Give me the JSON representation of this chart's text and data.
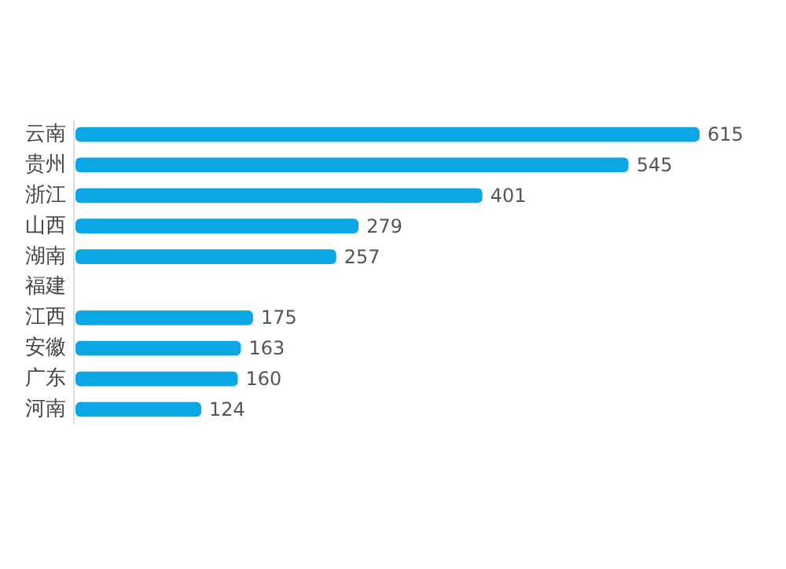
{
  "chart_data": {
    "type": "bar",
    "orientation": "horizontal",
    "categories": [
      "云南",
      "贵州",
      "浙江",
      "山西",
      "湖南",
      "福建",
      "江西",
      "安徽",
      "广东",
      "河南"
    ],
    "values": [
      615,
      545,
      401,
      279,
      257,
      null,
      175,
      163,
      160,
      124
    ],
    "color": "#0aa7e4",
    "data_labels": true
  }
}
